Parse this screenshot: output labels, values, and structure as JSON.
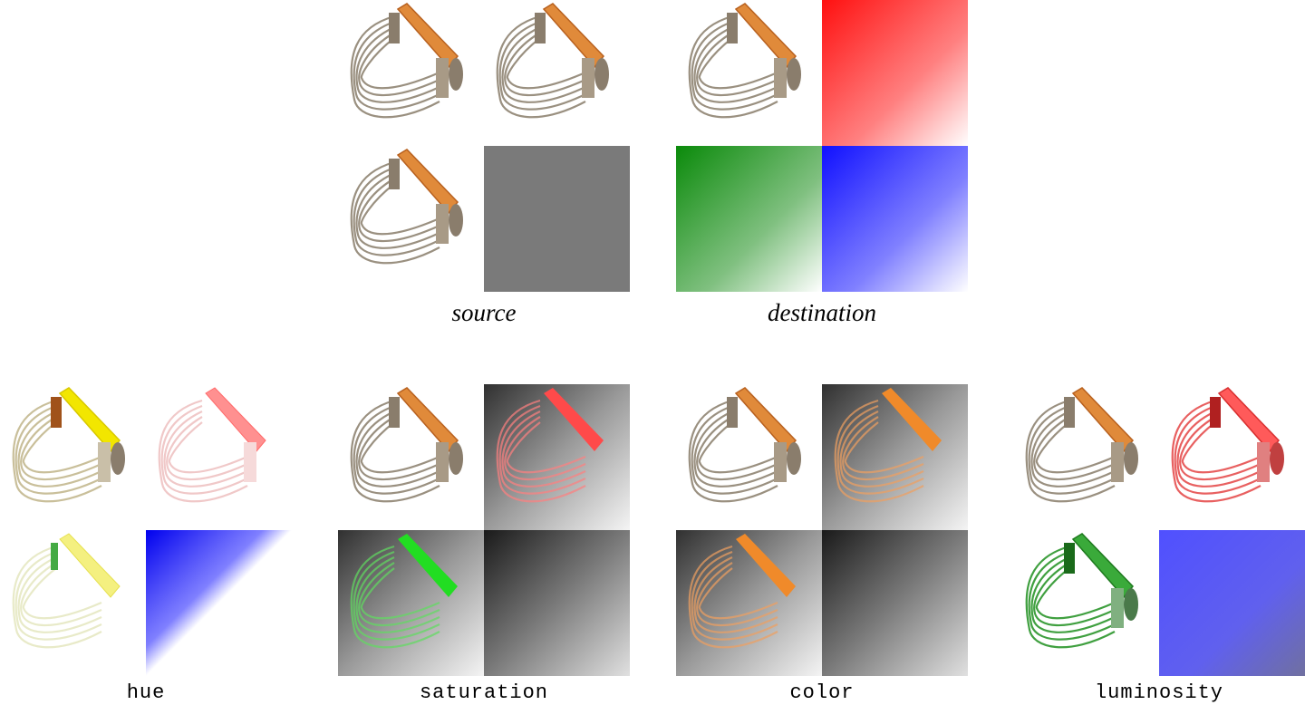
{
  "labels": {
    "source": "source",
    "destination": "destination",
    "hue": "hue",
    "saturation": "saturation",
    "color": "color",
    "luminosity": "luminosity"
  },
  "colors": {
    "handle": "#e08a3a",
    "handle_dark": "#b8611f",
    "wire": "#9a9080",
    "metal": "#8a7d6c",
    "red": "#ff1a1a",
    "green": "#159015",
    "blue": "#1a1aff",
    "gray": "#7a7a7a",
    "yellow": "#f2e600",
    "orange": "#f08a2a",
    "green_bright": "#22dd22",
    "red_pink": "#ff5a5a",
    "luminosity_blue": "#5a5aee"
  },
  "icons": {
    "cutter": "pastry-cutter-icon"
  }
}
